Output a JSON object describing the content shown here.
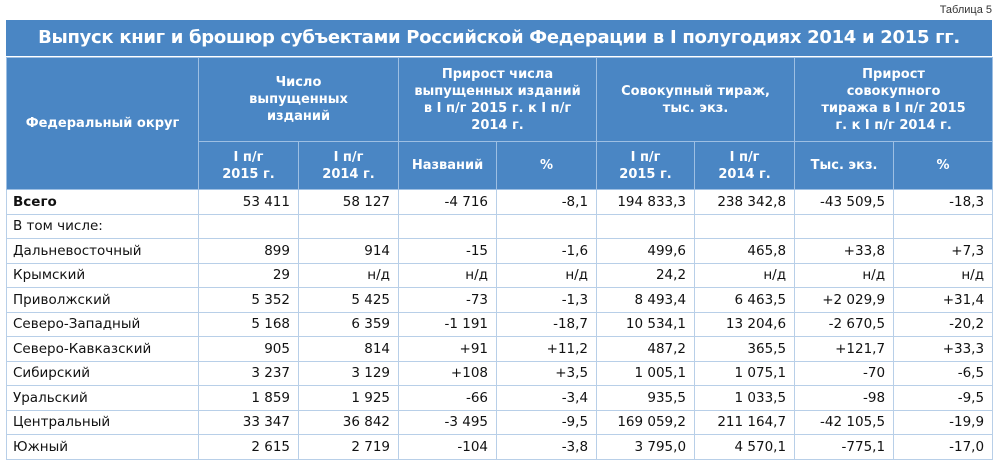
{
  "caption": "Таблица 5",
  "title": "Выпуск книг и брошюр субъектами Российской Федерации в I полугодиях 2014 и 2015 гг.",
  "headers": {
    "district": "Федеральный округ",
    "count": "Число выпущенных изданий",
    "count_growth": "Прирост числа выпущенных изданий в I п/г 2015 г. к I п/г 2014 г.",
    "circulation": "Совокупный тираж, тыс. экз.",
    "circulation_growth": "Прирост совокупного тиража в I п/г 2015 г. к I п/г 2014 г.",
    "h2015": "I п/г 2015 г.",
    "h2014": "I п/г 2014 г.",
    "titles": "Названий",
    "pct": "%",
    "thous": "Тыс. экз."
  },
  "rows": [
    {
      "name": "Всего",
      "c15": "53 411",
      "c14": "58 127",
      "g": "-4 716",
      "gp": "-8,1",
      "t15": "194 833,3",
      "t14": "238 342,8",
      "tg": "-43 509,5",
      "tgp": "-18,3"
    },
    {
      "name": "В том числе:",
      "c15": "",
      "c14": "",
      "g": "",
      "gp": "",
      "t15": "",
      "t14": "",
      "tg": "",
      "tgp": ""
    },
    {
      "name": "Дальневосточный",
      "c15": "899",
      "c14": "914",
      "g": "-15",
      "gp": "-1,6",
      "t15": "499,6",
      "t14": "465,8",
      "tg": "+33,8",
      "tgp": "+7,3"
    },
    {
      "name": "Крымский",
      "c15": "29",
      "c14": "н/д",
      "g": "н/д",
      "gp": "н/д",
      "t15": "24,2",
      "t14": "н/д",
      "tg": "н/д",
      "tgp": "н/д"
    },
    {
      "name": "Приволжский",
      "c15": "5 352",
      "c14": "5 425",
      "g": "-73",
      "gp": "-1,3",
      "t15": "8 493,4",
      "t14": "6 463,5",
      "tg": "+2 029,9",
      "tgp": "+31,4"
    },
    {
      "name": "Северо-Западный",
      "c15": "5 168",
      "c14": "6 359",
      "g": "-1 191",
      "gp": "-18,7",
      "t15": "10 534,1",
      "t14": "13 204,6",
      "tg": "-2 670,5",
      "tgp": "-20,2"
    },
    {
      "name": "Северо-Кавказский",
      "c15": "905",
      "c14": "814",
      "g": "+91",
      "gp": "+11,2",
      "t15": "487,2",
      "t14": "365,5",
      "tg": "+121,7",
      "tgp": "+33,3"
    },
    {
      "name": "Сибирский",
      "c15": "3 237",
      "c14": "3 129",
      "g": "+108",
      "gp": "+3,5",
      "t15": "1 005,1",
      "t14": "1 075,1",
      "tg": "-70",
      "tgp": "-6,5"
    },
    {
      "name": "Уральский",
      "c15": "1 859",
      "c14": "1 925",
      "g": "-66",
      "gp": "-3,4",
      "t15": "935,5",
      "t14": "1 033,5",
      "tg": "-98",
      "tgp": "-9,5"
    },
    {
      "name": "Центральный",
      "c15": "33 347",
      "c14": "36 842",
      "g": "-3 495",
      "gp": "-9,5",
      "t15": "169 059,2",
      "t14": "211 164,7",
      "tg": "-42 105,5",
      "tgp": "-19,9"
    },
    {
      "name": "Южный",
      "c15": "2 615",
      "c14": "2 719",
      "g": "-104",
      "gp": "-3,8",
      "t15": "3 795,0",
      "t14": "4 570,1",
      "tg": "-775,1",
      "tgp": "-17,0"
    }
  ]
}
